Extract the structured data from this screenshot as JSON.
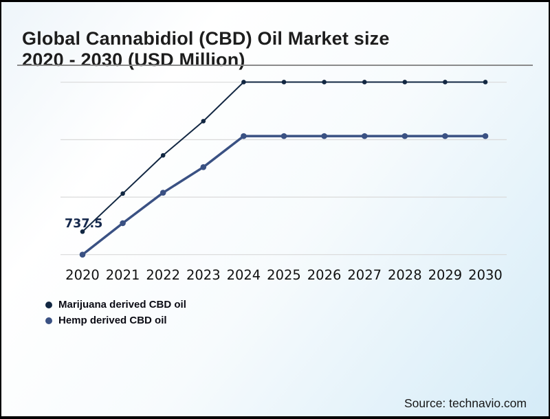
{
  "page": {
    "title_line1": "Global Cannabidiol (CBD) Oil Market size",
    "title_line2": "2020 - 2030 (USD Million)",
    "source": "Source: technavio.com"
  },
  "chart_data": {
    "type": "line",
    "title": "Global Cannabidiol (CBD) Oil Market size 2020 - 2030 (USD Million)",
    "xlabel": "",
    "ylabel": "",
    "x": [
      2020,
      2021,
      2022,
      2023,
      2024,
      2025,
      2026,
      2027,
      2028,
      2029,
      2030
    ],
    "series": [
      {
        "name": "Marijuana derived CBD oil",
        "color": "#122742",
        "line_width": 2,
        "values": [
          737.5,
          1400,
          2065,
          2660,
          3340,
          3340,
          3340,
          3340,
          3340,
          3340,
          3340
        ]
      },
      {
        "name": "Hemp derived CBD oil",
        "color": "#3a5183",
        "line_width": 3.5,
        "values": [
          337.5,
          885,
          1415,
          1860,
          2400,
          2400,
          2400,
          2400,
          2400,
          2400,
          2400
        ]
      }
    ],
    "point_label": {
      "text": "737.5",
      "series_index": 0,
      "x_index": 0
    },
    "gridlines": [
      337.5,
      1337.5,
      2337.5,
      3337.5
    ],
    "ylim": [
      240,
      3430
    ],
    "y_axis_labels_visible": false,
    "grid": "horizontal",
    "gridline_color": "#d9d9d9",
    "x_tick_color": "#111111",
    "legend_position": "bottom-left"
  }
}
